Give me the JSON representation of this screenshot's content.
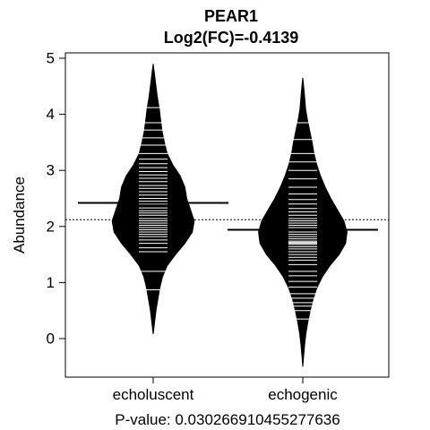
{
  "chart_data": {
    "type": "beanplot",
    "title": "PEAR1",
    "subtitle": "Log2(FC)=-0.4139",
    "ylabel": "Abundance",
    "xlabel": "P-value: 0.030266910455277636",
    "categories": [
      "echoluscent",
      "echogenic"
    ],
    "ylim": [
      -0.7,
      5.05
    ],
    "y_ticks": [
      0,
      1,
      2,
      3,
      4,
      5
    ],
    "overall_mean": 2.12,
    "series": [
      {
        "name": "echoluscent",
        "mean": 2.42,
        "range": [
          0.08,
          4.9
        ],
        "density": [
          [
            0.08,
            0.0
          ],
          [
            0.3,
            0.03
          ],
          [
            0.5,
            0.06
          ],
          [
            0.7,
            0.1
          ],
          [
            0.9,
            0.14
          ],
          [
            1.1,
            0.2
          ],
          [
            1.3,
            0.3
          ],
          [
            1.5,
            0.48
          ],
          [
            1.7,
            0.68
          ],
          [
            1.9,
            0.84
          ],
          [
            2.1,
            0.88
          ],
          [
            2.3,
            0.8
          ],
          [
            2.5,
            0.72
          ],
          [
            2.7,
            0.68
          ],
          [
            2.9,
            0.58
          ],
          [
            3.1,
            0.42
          ],
          [
            3.3,
            0.3
          ],
          [
            3.5,
            0.24
          ],
          [
            3.7,
            0.19
          ],
          [
            3.9,
            0.16
          ],
          [
            4.1,
            0.13
          ],
          [
            4.3,
            0.09
          ],
          [
            4.5,
            0.06
          ],
          [
            4.7,
            0.03
          ],
          [
            4.9,
            0.0
          ]
        ],
        "points": [
          0.87,
          1.2,
          1.55,
          1.62,
          1.7,
          1.76,
          1.82,
          1.86,
          1.9,
          1.94,
          1.98,
          2.02,
          2.06,
          2.1,
          2.14,
          2.2,
          2.24,
          2.28,
          2.33,
          2.4,
          2.45,
          2.5,
          2.56,
          2.62,
          2.68,
          2.73,
          2.8,
          2.86,
          2.92,
          2.98,
          3.05,
          3.12,
          3.2,
          3.3,
          3.45,
          3.58,
          3.72,
          3.85,
          4.12
        ]
      },
      {
        "name": "echogenic",
        "mean": 1.94,
        "range": [
          -0.5,
          4.65
        ],
        "density": [
          [
            -0.5,
            0.0
          ],
          [
            -0.3,
            0.02
          ],
          [
            -0.1,
            0.04
          ],
          [
            0.1,
            0.07
          ],
          [
            0.3,
            0.11
          ],
          [
            0.5,
            0.16
          ],
          [
            0.7,
            0.22
          ],
          [
            0.9,
            0.3
          ],
          [
            1.1,
            0.42
          ],
          [
            1.3,
            0.58
          ],
          [
            1.5,
            0.78
          ],
          [
            1.7,
            0.92
          ],
          [
            1.9,
            0.95
          ],
          [
            2.1,
            0.88
          ],
          [
            2.3,
            0.74
          ],
          [
            2.5,
            0.6
          ],
          [
            2.7,
            0.48
          ],
          [
            2.9,
            0.38
          ],
          [
            3.1,
            0.3
          ],
          [
            3.3,
            0.24
          ],
          [
            3.5,
            0.2
          ],
          [
            3.7,
            0.15
          ],
          [
            3.9,
            0.1
          ],
          [
            4.1,
            0.06
          ],
          [
            4.3,
            0.04
          ],
          [
            4.5,
            0.02
          ],
          [
            4.65,
            0.0
          ]
        ],
        "points": [
          0.35,
          0.5,
          0.58,
          0.64,
          0.72,
          0.8,
          0.92,
          1.02,
          1.12,
          1.2,
          1.32,
          1.4,
          1.45,
          1.5,
          1.55,
          1.6,
          1.64,
          1.68,
          1.7,
          1.72,
          1.74,
          1.78,
          1.82,
          1.86,
          1.9,
          1.94,
          1.98,
          2.02,
          2.06,
          2.1,
          2.14,
          2.2,
          2.26,
          2.32,
          2.4,
          2.48,
          2.58,
          2.7,
          2.85,
          3.0,
          3.15,
          3.3,
          3.55,
          3.85
        ]
      }
    ]
  }
}
